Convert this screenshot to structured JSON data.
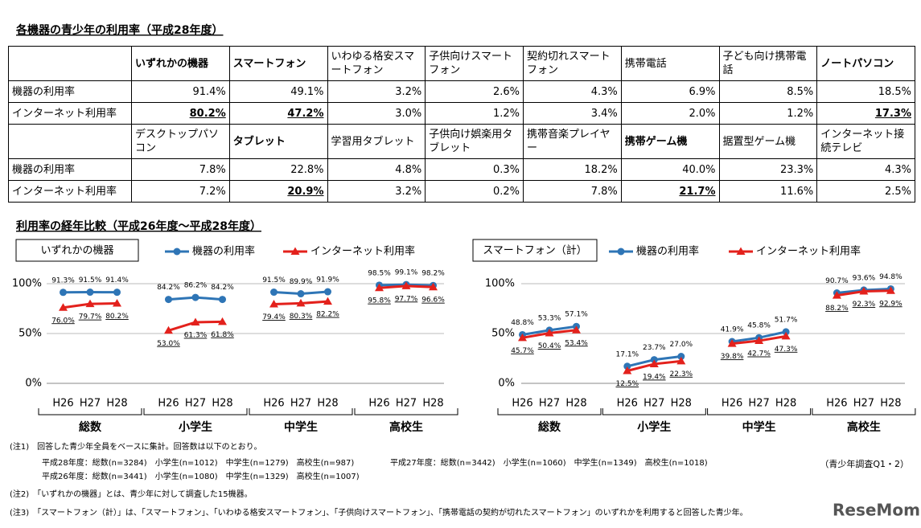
{
  "title": "各機器の青少年の利用率（平成28年度）",
  "table": {
    "sections": [
      {
        "devices": [
          "いずれかの機器",
          "スマートフォン",
          "いわゆる格安スマートフォン",
          "子供向けスマートフォン",
          "契約切れスマートフォン",
          "携帯電話",
          "子ども向け携帯電話",
          "ノートパソコン"
        ],
        "bold": [
          0,
          1,
          7
        ],
        "rows": [
          {
            "label": "機器の利用率",
            "values": [
              "91.4%",
              "49.1%",
              "3.2%",
              "2.6%",
              "4.3%",
              "6.9%",
              "8.5%",
              "18.5%"
            ]
          },
          {
            "label": "インターネット利用率",
            "values": [
              "80.2%",
              "47.2%",
              "3.0%",
              "1.2%",
              "3.4%",
              "2.0%",
              "1.2%",
              "17.3%"
            ],
            "underlined": [
              0,
              1,
              7
            ]
          }
        ]
      },
      {
        "devices": [
          "デスクトップパソコン",
          "タブレット",
          "学習用タブレット",
          "子供向け娯楽用タブレット",
          "携帯音楽プレイヤー",
          "携帯ゲーム機",
          "据置型ゲーム機",
          "インターネット接続テレビ"
        ],
        "bold": [
          1,
          5
        ],
        "rows": [
          {
            "label": "機器の利用率",
            "values": [
              "7.8%",
              "22.8%",
              "4.8%",
              "0.3%",
              "18.2%",
              "40.0%",
              "23.3%",
              "4.3%"
            ]
          },
          {
            "label": "インターネット利用率",
            "values": [
              "7.2%",
              "20.9%",
              "3.2%",
              "0.2%",
              "7.8%",
              "21.7%",
              "11.6%",
              "2.5%"
            ],
            "underlined": [
              1,
              5
            ]
          }
        ]
      }
    ]
  },
  "section_heading": "利用率の経年比較（平成26年度～平成28年度）",
  "chart_data": [
    {
      "type": "line",
      "title": "いずれかの機器",
      "groups": [
        "総数",
        "小学生",
        "中学生",
        "高校生"
      ],
      "categories": [
        "H26",
        "H27",
        "H28",
        "H26",
        "H27",
        "H28",
        "H26",
        "H27",
        "H28",
        "H26",
        "H27",
        "H28"
      ],
      "ylim": [
        0,
        100
      ],
      "yticks": [
        {
          "value": 0,
          "label": "0%"
        },
        {
          "value": 50,
          "label": "50%"
        },
        {
          "value": 100,
          "label": "100%"
        }
      ],
      "grid": true,
      "series": [
        {
          "name": "機器の利用率",
          "color": "#2e75b6",
          "marker": "circle",
          "values": [
            91.3,
            91.5,
            91.4,
            84.2,
            86.2,
            84.2,
            91.5,
            89.9,
            91.9,
            98.5,
            99.1,
            98.2
          ],
          "value_labels": [
            "91.3%",
            "91.5%",
            "91.4%",
            "84.2%",
            "86.2%",
            "84.2%",
            "91.5%",
            "89.9%",
            "91.9%",
            "98.5%",
            "99.1%",
            "98.2%"
          ]
        },
        {
          "name": "インターネット利用率",
          "color": "#e3211c",
          "marker": "triangle",
          "values": [
            76.0,
            79.7,
            80.2,
            53.0,
            61.3,
            61.8,
            79.4,
            80.3,
            82.2,
            95.8,
            97.7,
            96.6
          ],
          "value_labels": [
            "76.0%",
            "79.7%",
            "80.2%",
            "53.0%",
            "61.3%",
            "61.8%",
            "79.4%",
            "80.3%",
            "82.2%",
            "95.8%",
            "97.7%",
            "96.6%"
          ]
        }
      ]
    },
    {
      "type": "line",
      "title": "スマートフォン（計）",
      "groups": [
        "総数",
        "小学生",
        "中学生",
        "高校生"
      ],
      "categories": [
        "H26",
        "H27",
        "H28",
        "H26",
        "H27",
        "H28",
        "H26",
        "H27",
        "H28",
        "H26",
        "H27",
        "H28"
      ],
      "ylim": [
        0,
        100
      ],
      "yticks": [
        {
          "value": 0,
          "label": "0%"
        },
        {
          "value": 50,
          "label": "50%"
        },
        {
          "value": 100,
          "label": "100%"
        }
      ],
      "grid": true,
      "series": [
        {
          "name": "機器の利用率",
          "color": "#2e75b6",
          "marker": "circle",
          "values": [
            48.8,
            53.3,
            57.1,
            17.1,
            23.7,
            27.0,
            41.9,
            45.8,
            51.7,
            90.7,
            93.6,
            94.8
          ],
          "value_labels": [
            "48.8%",
            "53.3%",
            "57.1%",
            "17.1%",
            "23.7%",
            "27.0%",
            "41.9%",
            "45.8%",
            "51.7%",
            "90.7%",
            "93.6%",
            "94.8%"
          ]
        },
        {
          "name": "インターネット利用率",
          "color": "#e3211c",
          "marker": "triangle",
          "values": [
            45.7,
            50.4,
            53.4,
            12.5,
            19.4,
            22.3,
            39.8,
            42.7,
            47.3,
            88.2,
            92.3,
            92.9
          ],
          "value_labels": [
            "45.7%",
            "50.4%",
            "53.4%",
            "12.5%",
            "19.4%",
            "22.3%",
            "39.8%",
            "42.7%",
            "47.3%",
            "88.2%",
            "92.3%",
            "92.9%"
          ]
        }
      ]
    }
  ],
  "notes": {
    "note1": "(注1)　回答した青少年全員をベースに集計。回答数は以下のとおり。",
    "h28": "平成28年度：総数(n=3284)　小学生(n=1012)　中学生(n=1279)　高校生(n=987)",
    "h27": "平成27年度：総数(n=3442)　小学生(n=1060)　中学生(n=1349)　高校生(n=1018)",
    "h26": "平成26年度：総数(n=3441)　小学生(n=1080)　中学生(n=1329)　高校生(n=1007)",
    "source": "（青少年調査Q1・2）",
    "note2": "(注2)　「いずれかの機器」とは、青少年に対して調査した15機器。",
    "note3": "(注3)　「スマートフォン（計）」は、「スマートフォン」、「いわゆる格安スマートフォン」、「子供向けスマートフォン」、「携帯電話の契約が切れたスマートフォン」のいずれかを利用すると回答した青少年。"
  },
  "logo": "ReseMom"
}
